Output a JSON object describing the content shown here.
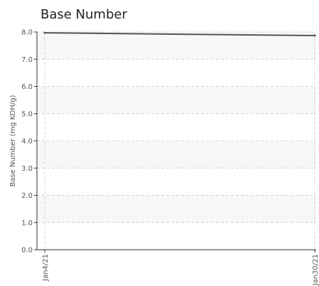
{
  "chart_data": {
    "type": "line",
    "title": "Base Number",
    "xlabel": "",
    "ylabel": "Base Number (mg KOH/g)",
    "ylim": [
      0,
      8
    ],
    "yticks": [
      "0.0",
      "1.0",
      "2.0",
      "3.0",
      "4.0",
      "5.0",
      "6.0",
      "7.0",
      "8.0"
    ],
    "x": [
      "Jan4/21",
      "Jan30/21"
    ],
    "xtick_labels": [
      "Jan4/21",
      "Jan30/21"
    ],
    "grid": true,
    "series": [
      {
        "values": [
          7.97,
          7.87
        ],
        "color": "#555555"
      }
    ]
  }
}
